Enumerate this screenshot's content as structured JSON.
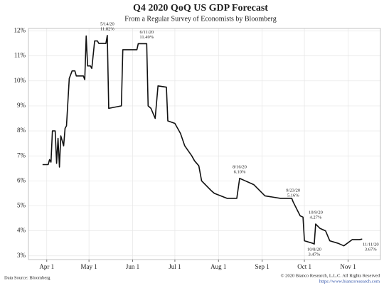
{
  "chart_data": {
    "type": "line",
    "title": "Q4 2020 QoQ US GDP Forecast",
    "subtitle": "From a Regular Survey of Economists by Bloomberg",
    "source": "Data Source: Bloomberg",
    "copyright": "© 2020 Bianco Research, L.L.C. All Rights Reserved",
    "url": "https://www.biancoresearch.com",
    "x": [
      "2020-03-29",
      "2020-04-02",
      "2020-04-03",
      "2020-04-04",
      "2020-04-05",
      "2020-04-07",
      "2020-04-08",
      "2020-04-09",
      "2020-04-10",
      "2020-04-11",
      "2020-04-13",
      "2020-04-14",
      "2020-04-15",
      "2020-04-17",
      "2020-04-19",
      "2020-04-21",
      "2020-04-22",
      "2020-04-27",
      "2020-04-28",
      "2020-04-29",
      "2020-04-30",
      "2020-05-02",
      "2020-05-03",
      "2020-05-05",
      "2020-05-07",
      "2020-05-08",
      "2020-05-13",
      "2020-05-14",
      "2020-05-15",
      "2020-05-24",
      "2020-05-25",
      "2020-06-04",
      "2020-06-05",
      "2020-06-11",
      "2020-06-12",
      "2020-06-14",
      "2020-06-17",
      "2020-06-19",
      "2020-06-25",
      "2020-06-26",
      "2020-07-01",
      "2020-07-05",
      "2020-07-08",
      "2020-07-13",
      "2020-07-15",
      "2020-07-18",
      "2020-07-20",
      "2020-07-27",
      "2020-07-29",
      "2020-08-07",
      "2020-08-14",
      "2020-08-16",
      "2020-08-20",
      "2020-08-26",
      "2020-09-03",
      "2020-09-14",
      "2020-09-22",
      "2020-09-23",
      "2020-09-28",
      "2020-09-30",
      "2020-10-01",
      "2020-10-07",
      "2020-10-08",
      "2020-10-09",
      "2020-10-12",
      "2020-10-16",
      "2020-10-19",
      "2020-10-25",
      "2020-10-29",
      "2020-11-04",
      "2020-11-09",
      "2020-11-11"
    ],
    "series": [
      {
        "name": "Q4 2020 QoQ US GDP Forecast",
        "color": "#111111",
        "values": [
          6.65,
          6.65,
          6.85,
          6.75,
          8.0,
          8.0,
          6.7,
          7.7,
          6.55,
          7.8,
          7.4,
          8.1,
          8.2,
          10.1,
          10.4,
          10.4,
          10.2,
          10.2,
          10.05,
          11.8,
          10.6,
          10.6,
          10.5,
          11.6,
          11.6,
          11.5,
          11.5,
          11.82,
          8.9,
          9.0,
          11.25,
          11.25,
          11.49,
          11.49,
          9.0,
          8.9,
          8.5,
          9.8,
          9.75,
          8.4,
          8.3,
          7.9,
          7.4,
          7.0,
          6.8,
          6.6,
          6.0,
          5.6,
          5.5,
          5.3,
          5.3,
          6.1,
          6.0,
          5.85,
          5.4,
          5.3,
          5.3,
          5.16,
          4.6,
          4.55,
          3.6,
          3.5,
          3.47,
          4.27,
          4.1,
          4.0,
          3.6,
          3.5,
          3.4,
          3.65,
          3.65,
          3.67
        ]
      }
    ],
    "annotations": [
      {
        "x": "2020-05-14",
        "y": 11.82,
        "date_label": "5/14/20",
        "value_label": "11.82%"
      },
      {
        "x": "2020-06-11",
        "y": 11.49,
        "date_label": "6/11/20",
        "value_label": "11.49%"
      },
      {
        "x": "2020-08-16",
        "y": 6.1,
        "date_label": "8/16/20",
        "value_label": "6.10%"
      },
      {
        "x": "2020-09-23",
        "y": 5.16,
        "date_label": "9/23/20",
        "value_label": "5.16%"
      },
      {
        "x": "2020-10-09",
        "y": 4.27,
        "date_label": "10/9/20",
        "value_label": "4.27%"
      },
      {
        "x": "2020-10-08",
        "y": 3.47,
        "date_label": "10/8/20",
        "value_label": "3.47%"
      },
      {
        "x": "2020-11-11",
        "y": 3.67,
        "date_label": "11/11/20",
        "value_label": "3.67%"
      }
    ],
    "xlim": [
      "2020-03-19",
      "2020-11-24"
    ],
    "xticks": [
      {
        "value": "2020-04-01",
        "label": "Apr 1"
      },
      {
        "value": "2020-05-01",
        "label": "May 1"
      },
      {
        "value": "2020-06-01",
        "label": "Jun 1"
      },
      {
        "value": "2020-07-01",
        "label": "Jul 1"
      },
      {
        "value": "2020-08-01",
        "label": "Aug 1"
      },
      {
        "value": "2020-09-01",
        "label": "Sep 1"
      },
      {
        "value": "2020-10-01",
        "label": "Oct 1"
      },
      {
        "value": "2020-11-01",
        "label": "Nov 1"
      }
    ],
    "ylim": [
      2.85,
      12.1
    ],
    "yticks": [
      {
        "value": 3,
        "label": "3%"
      },
      {
        "value": 4,
        "label": "4%"
      },
      {
        "value": 5,
        "label": "5%"
      },
      {
        "value": 6,
        "label": "6%"
      },
      {
        "value": 7,
        "label": "7%"
      },
      {
        "value": 8,
        "label": "8%"
      },
      {
        "value": 9,
        "label": "9%"
      },
      {
        "value": 10,
        "label": "10%"
      },
      {
        "value": 11,
        "label": "11%"
      },
      {
        "value": 12,
        "label": "12%"
      }
    ],
    "grid": true
  }
}
